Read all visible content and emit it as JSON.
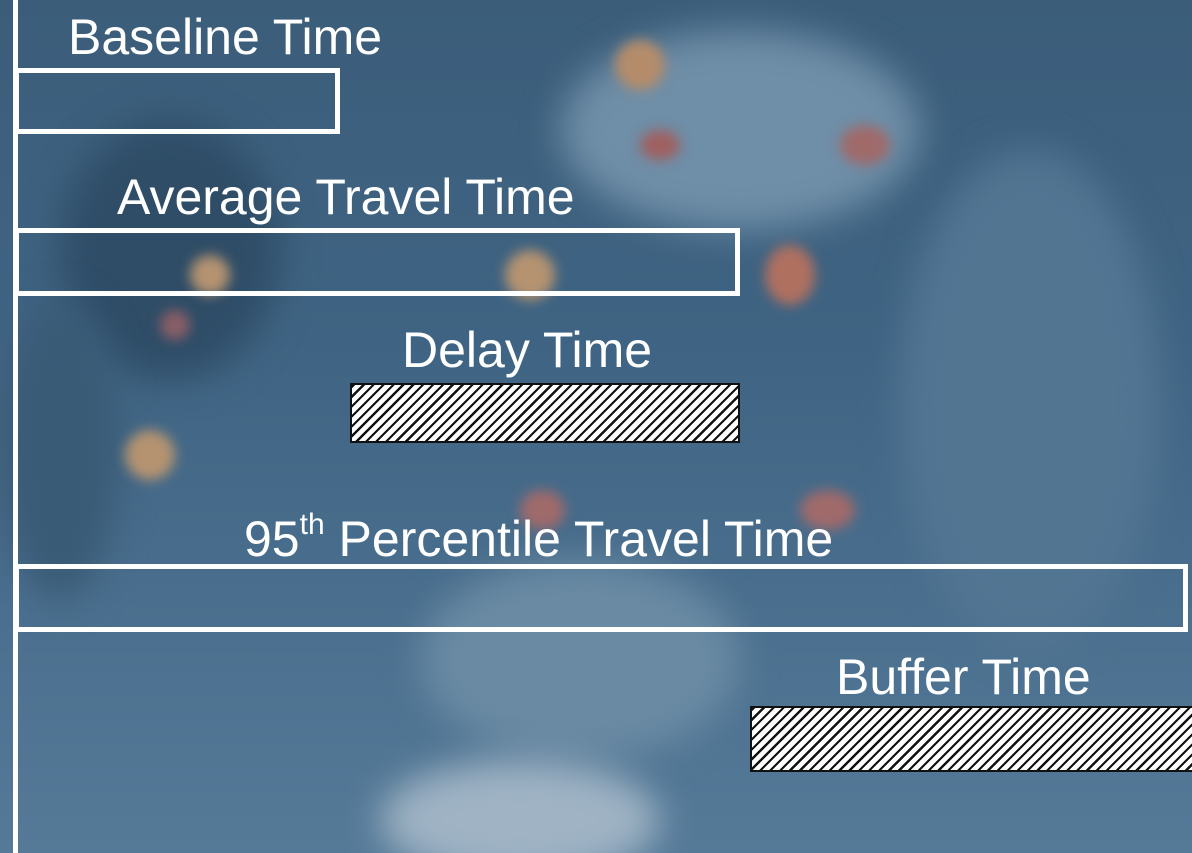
{
  "labels": {
    "baseline": "Baseline Time",
    "average": "Average Travel Time",
    "delay": "Delay Time",
    "p95_prefix": "95",
    "p95_sup": "th",
    "p95_suffix": " Percentile Travel Time",
    "buffer": "Buffer Time"
  },
  "colors": {
    "bar_outline": "#ffffff",
    "hatch_line": "#111111",
    "background": "#3f6483"
  }
}
